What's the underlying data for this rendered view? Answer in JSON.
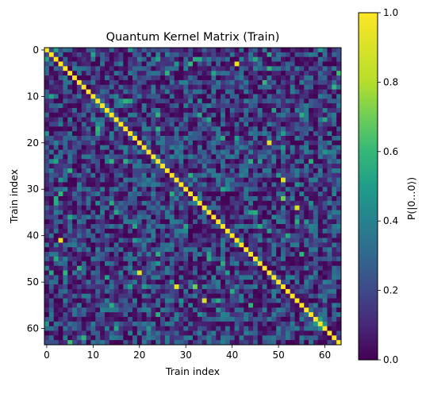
{
  "chart_data": {
    "type": "heatmap",
    "title": "Quantum Kernel Matrix (Train)",
    "xlabel": "Train index",
    "ylabel": "Train index",
    "n": 64,
    "x_ticks": [
      0,
      10,
      20,
      30,
      40,
      50,
      60
    ],
    "y_ticks": [
      0,
      10,
      20,
      30,
      40,
      50,
      60
    ],
    "colorbar": {
      "label": "P(|0...0⟩)",
      "range": [
        0.0,
        1.0
      ],
      "ticks": [
        "0.0",
        "0.2",
        "0.4",
        "0.6",
        "0.8",
        "1.0"
      ],
      "colormap": "viridis"
    },
    "diagonal_value": 1.0,
    "off_diagonal_typical_range": [
      0.0,
      0.4
    ],
    "highlighted_cells": [
      {
        "row": 3,
        "col": 41,
        "value": 0.95
      },
      {
        "row": 20,
        "col": 48,
        "value": 0.92
      },
      {
        "row": 28,
        "col": 51,
        "value": 0.93
      },
      {
        "row": 34,
        "col": 54,
        "value": 0.9
      },
      {
        "row": 41,
        "col": 3,
        "value": 0.95
      },
      {
        "row": 48,
        "col": 20,
        "value": 0.92
      },
      {
        "row": 51,
        "col": 28,
        "value": 0.93
      },
      {
        "row": 54,
        "col": 34,
        "value": 0.9
      },
      {
        "row": 32,
        "col": 51,
        "value": 0.7
      },
      {
        "row": 51,
        "col": 32,
        "value": 0.7
      },
      {
        "row": 63,
        "col": 5,
        "value": 0.62
      },
      {
        "row": 5,
        "col": 63,
        "value": 0.62
      }
    ]
  }
}
